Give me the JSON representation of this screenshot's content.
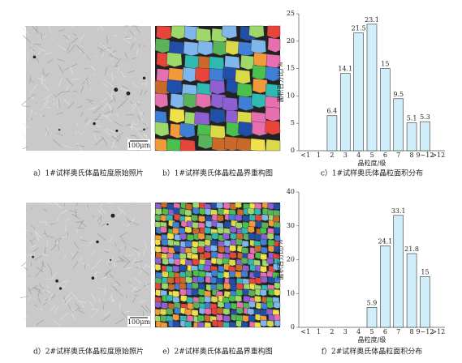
{
  "chart_data": [
    {
      "type": "bar",
      "categories": [
        "<1",
        "1",
        "2",
        "3",
        "4",
        "5",
        "6",
        "7",
        "8",
        "9~12",
        ">12"
      ],
      "values": [
        null,
        null,
        6.4,
        14.1,
        21.5,
        23.1,
        15,
        9.5,
        5.1,
        5.3,
        null
      ],
      "color": "#cfeefa",
      "ylim": [
        0,
        25
      ],
      "yticks": [
        0,
        5,
        10,
        15,
        20,
        25
      ],
      "x_label": "晶粒度/级",
      "y_label": "面积百分比/%"
    },
    {
      "type": "bar",
      "categories": [
        "<1",
        "1",
        "2",
        "3",
        "4",
        "5",
        "6",
        "7",
        "8",
        "9~12",
        ">12"
      ],
      "values": [
        null,
        null,
        null,
        null,
        null,
        5.9,
        24.1,
        33.1,
        21.8,
        15,
        null
      ],
      "color": "#cfeefa",
      "ylim": [
        0,
        40
      ],
      "yticks": [
        0,
        10,
        20,
        30,
        40
      ],
      "x_label": "晶粒度/级",
      "y_label": "面积百分比/%"
    }
  ],
  "captions": [
    "a）1#试样奥氏体晶粒度原始照片",
    "b）1#试样奥氏体晶粒晶界重构图",
    "c）1#试样奥氏体晶粒面积分布",
    "d）2#试样奥氏体晶粒度原始照片",
    "e）2#试样奥氏体晶粒晶界重构图",
    "f）2#试样奥氏体晶粒面积分布"
  ],
  "scale_labels": [
    "100μm",
    "100μm"
  ]
}
